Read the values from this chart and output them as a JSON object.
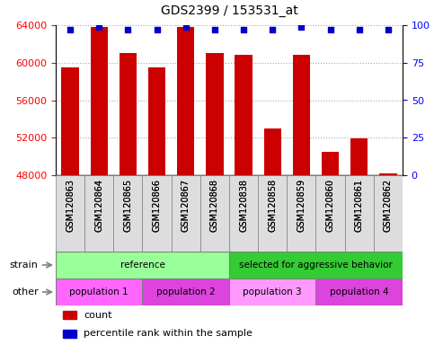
{
  "title": "GDS2399 / 153531_at",
  "samples": [
    "GSM120863",
    "GSM120864",
    "GSM120865",
    "GSM120866",
    "GSM120867",
    "GSM120868",
    "GSM120838",
    "GSM120858",
    "GSM120859",
    "GSM120860",
    "GSM120861",
    "GSM120862"
  ],
  "counts": [
    59500,
    63800,
    61000,
    59500,
    63800,
    61000,
    60800,
    53000,
    60800,
    50500,
    51900,
    48200
  ],
  "percentile_ranks": [
    97,
    99,
    97,
    97,
    99,
    97,
    97,
    97,
    99,
    97,
    97,
    97
  ],
  "ylim_left": [
    48000,
    64000
  ],
  "ylim_right": [
    0,
    100
  ],
  "yticks_left": [
    48000,
    52000,
    56000,
    60000,
    64000
  ],
  "yticks_right": [
    0,
    25,
    50,
    75,
    100
  ],
  "bar_color": "#cc0000",
  "dot_color": "#0000cc",
  "bar_width": 0.6,
  "strain_labels": [
    {
      "text": "reference",
      "start": 0,
      "end": 6,
      "color": "#99ff99"
    },
    {
      "text": "selected for aggressive behavior",
      "start": 6,
      "end": 12,
      "color": "#33cc33"
    }
  ],
  "other_labels": [
    {
      "text": "population 1",
      "start": 0,
      "end": 3,
      "color": "#ff66ff"
    },
    {
      "text": "population 2",
      "start": 3,
      "end": 6,
      "color": "#dd44dd"
    },
    {
      "text": "population 3",
      "start": 6,
      "end": 9,
      "color": "#ff99ff"
    },
    {
      "text": "population 4",
      "start": 9,
      "end": 12,
      "color": "#dd44dd"
    }
  ],
  "strain_row_label": "strain",
  "other_row_label": "other",
  "legend_count_color": "#cc0000",
  "legend_pct_color": "#0000cc",
  "background_color": "#ffffff",
  "grid_color": "#aaaaaa"
}
